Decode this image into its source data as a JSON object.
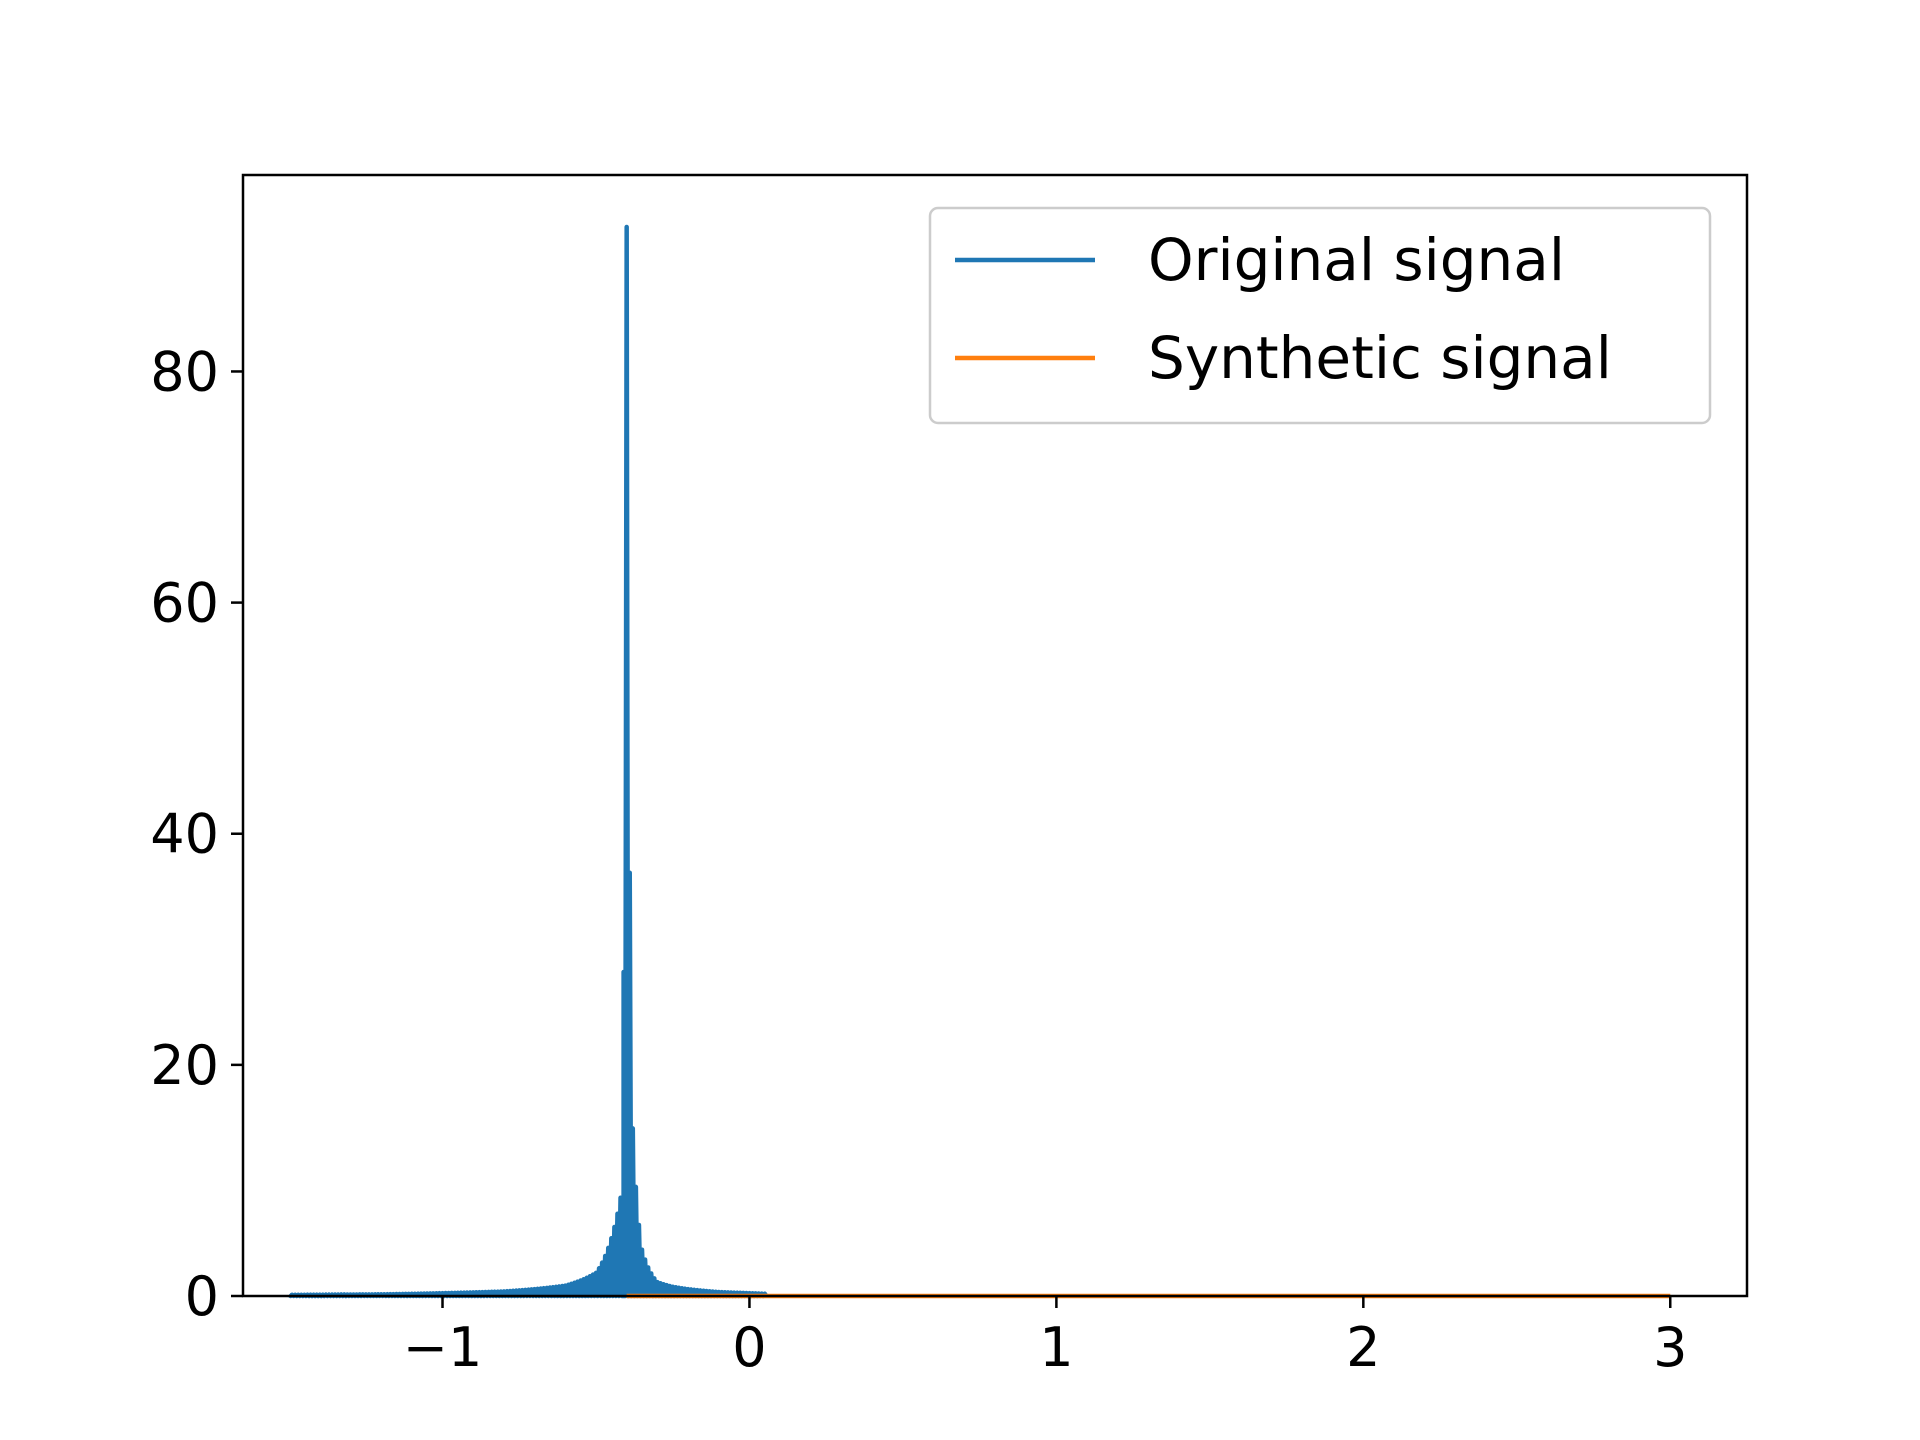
{
  "chart_data": {
    "type": "line",
    "xlim": [
      -1.65,
      3.25
    ],
    "ylim": [
      0,
      97
    ],
    "grid": false,
    "legend_position": "top-right",
    "x_ticks": [
      {
        "value": -1,
        "label": "−1"
      },
      {
        "value": 0,
        "label": "0"
      },
      {
        "value": 1,
        "label": "1"
      },
      {
        "value": 2,
        "label": "2"
      },
      {
        "value": 3,
        "label": "3"
      }
    ],
    "y_ticks": [
      {
        "value": 0,
        "label": "0"
      },
      {
        "value": 20,
        "label": "20"
      },
      {
        "value": 40,
        "label": "40"
      },
      {
        "value": 60,
        "label": "60"
      },
      {
        "value": 80,
        "label": "80"
      }
    ],
    "series": [
      {
        "name": "Original signal",
        "color": "#1f77b4",
        "peak_x": -0.4,
        "peak_y": 92.5,
        "x_range": [
          -1.5,
          0.05
        ],
        "oscillation_period": 0.02,
        "x": [
          -1.5,
          -1.2,
          -1.0,
          -0.8,
          -0.7,
          -0.6,
          -0.5,
          -0.45,
          -0.42,
          -0.4,
          -0.38,
          -0.35,
          -0.3,
          -0.25,
          -0.2,
          -0.1,
          0.0,
          0.05
        ],
        "y": [
          0.1,
          0.15,
          0.25,
          0.4,
          0.6,
          0.9,
          2.0,
          5.0,
          8.5,
          92.5,
          14.5,
          4.0,
          1.2,
          0.8,
          0.6,
          0.35,
          0.25,
          0.2
        ]
      },
      {
        "name": "Synthetic signal",
        "color": "#ff7f0e",
        "x": [
          -0.4,
          3.0
        ],
        "y": [
          0,
          0
        ]
      }
    ]
  }
}
